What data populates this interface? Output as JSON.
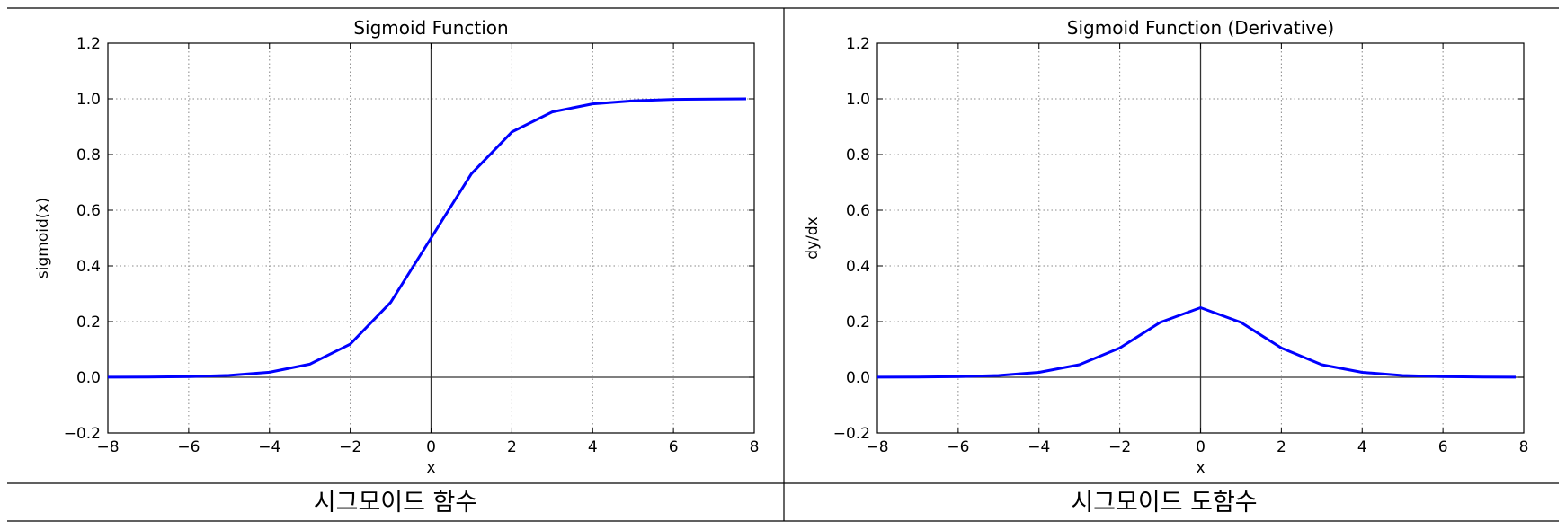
{
  "chart_data": [
    {
      "type": "line",
      "title": "Sigmoid Function",
      "xlabel": "x",
      "ylabel": "sigmoid(x)",
      "xlim": [
        -8,
        8
      ],
      "ylim": [
        -0.2,
        1.2
      ],
      "xticks": [
        -8,
        -6,
        -4,
        -2,
        0,
        2,
        4,
        6,
        8
      ],
      "yticks": [
        -0.2,
        0.0,
        0.2,
        0.4,
        0.6,
        0.8,
        1.0,
        1.2
      ],
      "xtick_labels": [
        "−8",
        "−6",
        "−4",
        "−2",
        "0",
        "2",
        "4",
        "6",
        "8"
      ],
      "ytick_labels": [
        "−0.2",
        "0.0",
        "0.2",
        "0.4",
        "0.6",
        "0.8",
        "1.0",
        "1.2"
      ],
      "grid": true,
      "series": [
        {
          "color": "#0000ff",
          "x": [
            -8,
            -7,
            -6,
            -5,
            -4,
            -3,
            -2,
            -1,
            0,
            1,
            2,
            3,
            4,
            5,
            6,
            7,
            7.8
          ],
          "y": [
            0.0003,
            0.0009,
            0.0025,
            0.0067,
            0.018,
            0.047,
            0.119,
            0.269,
            0.5,
            0.731,
            0.881,
            0.953,
            0.982,
            0.993,
            0.998,
            0.999,
            1.0
          ]
        }
      ]
    },
    {
      "type": "line",
      "title": "Sigmoid Function (Derivative)",
      "xlabel": "x",
      "ylabel": "dy/dx",
      "xlim": [
        -8,
        8
      ],
      "ylim": [
        -0.2,
        1.2
      ],
      "xticks": [
        -8,
        -6,
        -4,
        -2,
        0,
        2,
        4,
        6,
        8
      ],
      "yticks": [
        -0.2,
        0.0,
        0.2,
        0.4,
        0.6,
        0.8,
        1.0,
        1.2
      ],
      "xtick_labels": [
        "−8",
        "−6",
        "−4",
        "−2",
        "0",
        "2",
        "4",
        "6",
        "8"
      ],
      "ytick_labels": [
        "−0.2",
        "0.0",
        "0.2",
        "0.4",
        "0.6",
        "0.8",
        "1.0",
        "1.2"
      ],
      "grid": true,
      "series": [
        {
          "color": "#0000ff",
          "x": [
            -8,
            -7,
            -6,
            -5,
            -4,
            -3,
            -2,
            -1,
            0,
            1,
            2,
            3,
            4,
            5,
            6,
            7,
            7.8
          ],
          "y": [
            0.0003,
            0.0009,
            0.0025,
            0.0066,
            0.0177,
            0.0452,
            0.105,
            0.197,
            0.25,
            0.197,
            0.105,
            0.0452,
            0.0177,
            0.0066,
            0.0025,
            0.0009,
            0.0004
          ]
        }
      ]
    }
  ],
  "captions": {
    "left": "시그모이드 함수",
    "right": "시그모이드 도함수"
  }
}
